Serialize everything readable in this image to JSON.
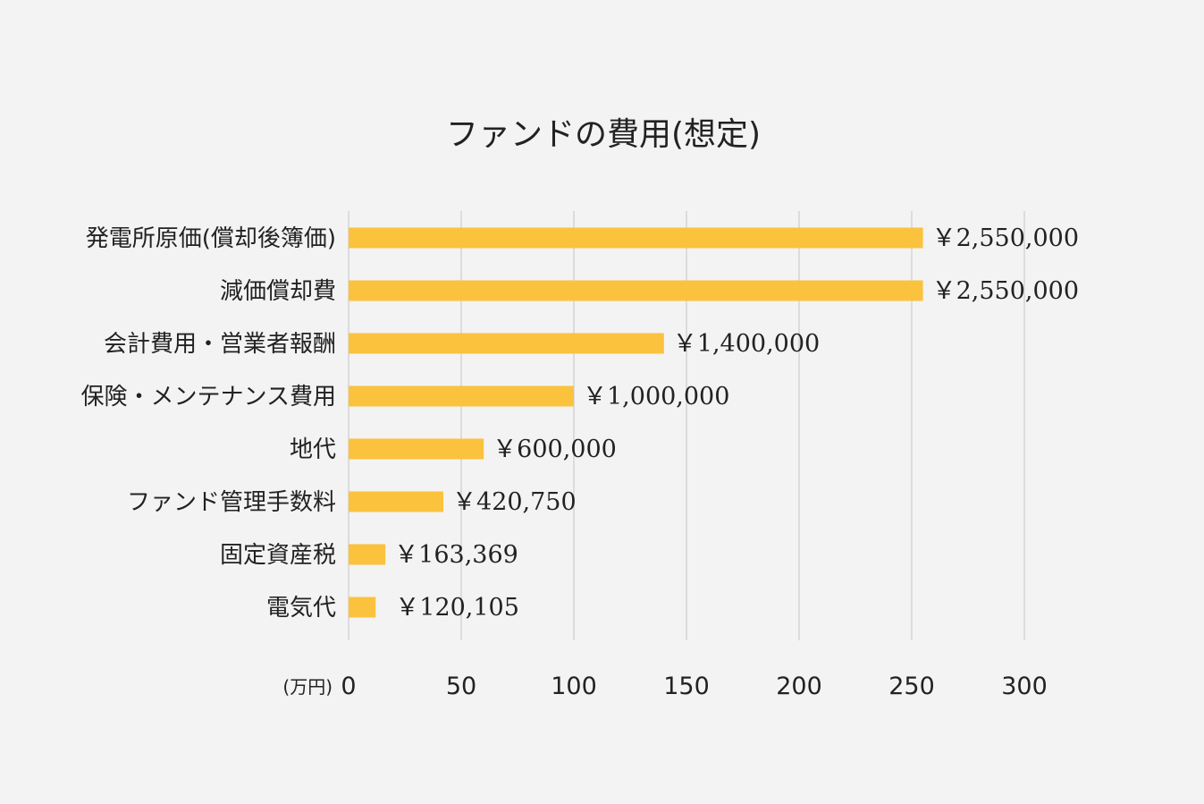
{
  "chart_data": {
    "type": "bar",
    "orientation": "horizontal",
    "title": "ファンドの費用(想定)",
    "unit_label": "(万円)",
    "categories": [
      "発電所原価(償却後簿価)",
      "減価償却費",
      "会計費用・営業者報酬",
      "保険・メンテナンス費用",
      "地代",
      "ファンド管理手数料",
      "固定資産税",
      "電気代"
    ],
    "values": [
      255,
      255,
      140,
      100,
      60,
      42.075,
      16.3369,
      12.0105
    ],
    "value_labels": [
      "￥2,550,000",
      "￥2,550,000",
      "￥1,400,000",
      "￥1,000,000",
      "￥600,000",
      "￥420,750",
      "￥163,369",
      "￥120,105"
    ],
    "xlim": [
      0,
      300
    ],
    "x_ticks": [
      "0",
      "50",
      "100",
      "150",
      "200",
      "250",
      "300"
    ],
    "grid": true,
    "bar_color": "#fbc23d",
    "gridline_color": "#cccccc",
    "background_color": "#f3f3f3"
  }
}
